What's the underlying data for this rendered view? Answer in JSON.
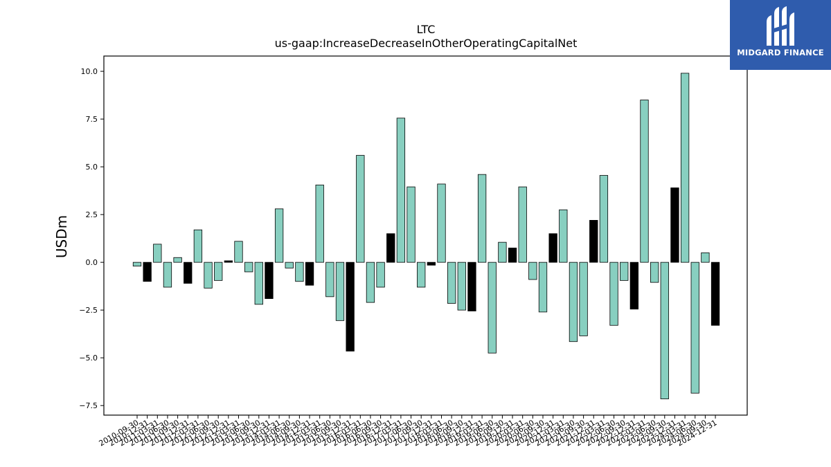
{
  "chart_data": {
    "type": "bar",
    "title": "LTC",
    "subtitle": "us-gaap:IncreaseDecreaseInOtherOperatingCapitalNet",
    "ylabel": "USDm",
    "ylim": [
      -8.0,
      10.8
    ],
    "yticks": [
      -7.5,
      -5.0,
      -2.5,
      0.0,
      2.5,
      5.0,
      7.5,
      10.0
    ],
    "ytick_labels": [
      "−7.5",
      "−5.0",
      "−2.5",
      "0.0",
      "2.5",
      "5.0",
      "7.5",
      "10.0"
    ],
    "grid": false,
    "legend": "none",
    "colors": {
      "quarter": "#88cfc0",
      "fourth": "#000000",
      "edge": "#000000"
    },
    "categories": [
      "2010-09-30",
      "2010-12-31",
      "2011-03-31",
      "2011-06-30",
      "2011-09-30",
      "2011-12-31",
      "2012-03-31",
      "2012-06-30",
      "2012-09-30",
      "2012-12-31",
      "2013-03-31",
      "2013-06-30",
      "2013-09-30",
      "2013-12-31",
      "2014-03-31",
      "2014-06-30",
      "2014-09-30",
      "2014-12-31",
      "2015-03-31",
      "2015-06-30",
      "2015-09-30",
      "2015-12-31",
      "2016-03-31",
      "2016-06-30",
      "2016-09-30",
      "2016-12-31",
      "2017-03-31",
      "2017-06-30",
      "2017-09-30",
      "2017-12-31",
      "2018-03-31",
      "2018-06-30",
      "2018-09-30",
      "2018-12-31",
      "2019-03-31",
      "2019-06-30",
      "2019-09-30",
      "2019-12-31",
      "2020-03-31",
      "2020-06-30",
      "2020-09-30",
      "2020-12-31",
      "2021-03-31",
      "2021-06-30",
      "2021-09-30",
      "2021-12-31",
      "2022-03-31",
      "2022-06-30",
      "2022-09-30",
      "2022-12-31",
      "2023-03-31",
      "2023-06-30",
      "2023-09-30",
      "2023-12-31",
      "2024-03-31",
      "2024-06-30",
      "2024-09-30",
      "2024-12-31"
    ],
    "values": [
      -0.2,
      -1.0,
      0.95,
      -1.3,
      0.25,
      -1.1,
      1.7,
      -1.35,
      -0.95,
      0.08,
      1.1,
      -0.5,
      -2.2,
      -1.9,
      2.8,
      -0.3,
      -1.0,
      -1.2,
      4.05,
      -1.8,
      -3.05,
      -4.65,
      5.6,
      -2.1,
      -1.3,
      1.5,
      7.55,
      3.95,
      -1.3,
      -0.15,
      4.1,
      -2.15,
      -2.5,
      -2.55,
      4.6,
      -4.75,
      1.05,
      0.75,
      3.95,
      -0.9,
      -2.6,
      1.5,
      2.75,
      -4.15,
      -3.85,
      2.2,
      4.55,
      -3.3,
      -0.95,
      -2.45,
      8.5,
      -1.05,
      -7.15,
      3.9,
      9.9,
      -6.85,
      0.5,
      -3.3
    ]
  },
  "logo": {
    "text": "MIDGARD FINANCE"
  }
}
